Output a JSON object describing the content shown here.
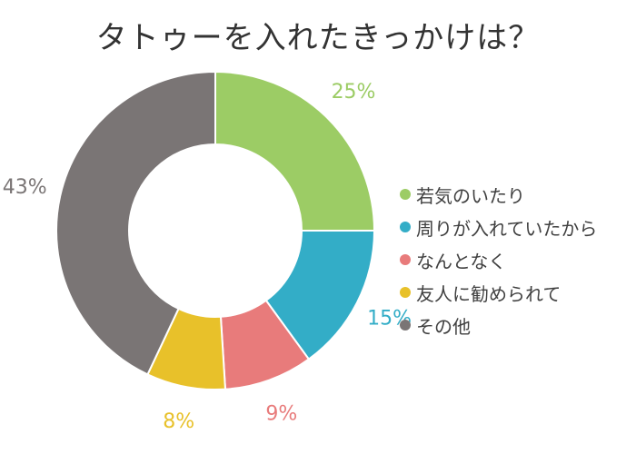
{
  "title": "タトゥーを入れたきっかけは？",
  "chart_data": {
    "type": "pie",
    "categories": [
      "若気のいたり",
      "周りが入れていたから",
      "なんとなく",
      "友人に勧められて",
      "その他"
    ],
    "values": [
      25,
      15,
      9,
      8,
      43
    ],
    "labels": [
      "25%",
      "15%",
      "9%",
      "8%",
      "43%"
    ],
    "colors": [
      "#9ccc65",
      "#33adc7",
      "#e87b7b",
      "#e8c12a",
      "#7a7575"
    ],
    "donut": true,
    "legend": "right"
  }
}
